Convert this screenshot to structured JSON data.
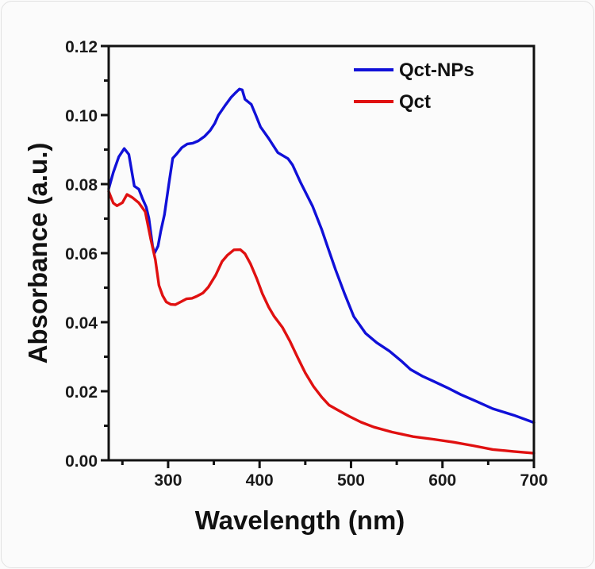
{
  "chart_data": {
    "type": "line",
    "title": "",
    "xlabel": "Wavelength (nm)",
    "ylabel": "Absorbance (a.u.)",
    "xlim": [
      235,
      700
    ],
    "ylim": [
      0,
      0.12
    ],
    "xticks": [
      300,
      400,
      500,
      600,
      700
    ],
    "xtick_labels": [
      "300",
      "400",
      "500",
      "600",
      "700"
    ],
    "x_minor_ticks": [
      250,
      350,
      450,
      550,
      650
    ],
    "yticks": [
      0.0,
      0.02,
      0.04,
      0.06,
      0.08,
      0.1,
      0.12
    ],
    "ytick_labels": [
      "0.00",
      "0.02",
      "0.04",
      "0.06",
      "0.08",
      "0.10",
      "0.12"
    ],
    "y_minor_ticks": [
      0.01,
      0.03,
      0.05,
      0.07,
      0.09,
      0.11
    ],
    "grid": false,
    "legend_position": "top-right",
    "series": [
      {
        "name": "Qct-NPs",
        "color": "#1010d8",
        "x": [
          235,
          240,
          246,
          252,
          257,
          263,
          268,
          272,
          276,
          279,
          283,
          285,
          289,
          292,
          296,
          301,
          305,
          309,
          315,
          321,
          327,
          333,
          340,
          346,
          351,
          355,
          362,
          369,
          374,
          378,
          381,
          384,
          391,
          396,
          401,
          410,
          420,
          431,
          436,
          445,
          458,
          468,
          474,
          483,
          493,
          503,
          516,
          528,
          542,
          555,
          565,
          578,
          590,
          605,
          620,
          637,
          655,
          678,
          700
        ],
        "values": [
          0.0786,
          0.0835,
          0.088,
          0.0903,
          0.0885,
          0.0793,
          0.0785,
          0.0759,
          0.0735,
          0.0701,
          0.062,
          0.0598,
          0.062,
          0.0665,
          0.0713,
          0.0805,
          0.0874,
          0.0885,
          0.0905,
          0.0917,
          0.092,
          0.0926,
          0.0938,
          0.0954,
          0.0975,
          0.1,
          0.1028,
          0.1053,
          0.1065,
          0.1074,
          0.1072,
          0.1046,
          0.1032,
          0.1,
          0.0966,
          0.0931,
          0.089,
          0.0874,
          0.0857,
          0.0805,
          0.0736,
          0.0667,
          0.062,
          0.0552,
          0.0483,
          0.0418,
          0.0368,
          0.034,
          0.0315,
          0.0287,
          0.0264,
          0.0245,
          0.023,
          0.021,
          0.0189,
          0.017,
          0.015,
          0.0132,
          0.011
        ]
      },
      {
        "name": "Qct",
        "color": "#e01010",
        "x": [
          235,
          240,
          244,
          250,
          255,
          261,
          268,
          275,
          281,
          286,
          290,
          294,
          298,
          303,
          308,
          314,
          320,
          326,
          331,
          338,
          344,
          352,
          359,
          365,
          372,
          379,
          384,
          390,
          397,
          403,
          410,
          416,
          425,
          433,
          441,
          450,
          459,
          468,
          476,
          485,
          498,
          511,
          525,
          545,
          568,
          590,
          612,
          633,
          655,
          678,
          700
        ],
        "values": [
          0.078,
          0.0745,
          0.0736,
          0.0745,
          0.077,
          0.0762,
          0.0747,
          0.072,
          0.064,
          0.058,
          0.0506,
          0.0478,
          0.046,
          0.0452,
          0.045,
          0.0458,
          0.0467,
          0.047,
          0.0476,
          0.0485,
          0.0501,
          0.0535,
          0.0575,
          0.0595,
          0.0611,
          0.0611,
          0.0598,
          0.0568,
          0.0525,
          0.0483,
          0.0445,
          0.0418,
          0.0385,
          0.0345,
          0.03,
          0.0253,
          0.0215,
          0.0184,
          0.016,
          0.0145,
          0.0126,
          0.011,
          0.0097,
          0.0083,
          0.0069,
          0.006,
          0.0051,
          0.0042,
          0.0032,
          0.0027,
          0.0021
        ]
      }
    ]
  }
}
